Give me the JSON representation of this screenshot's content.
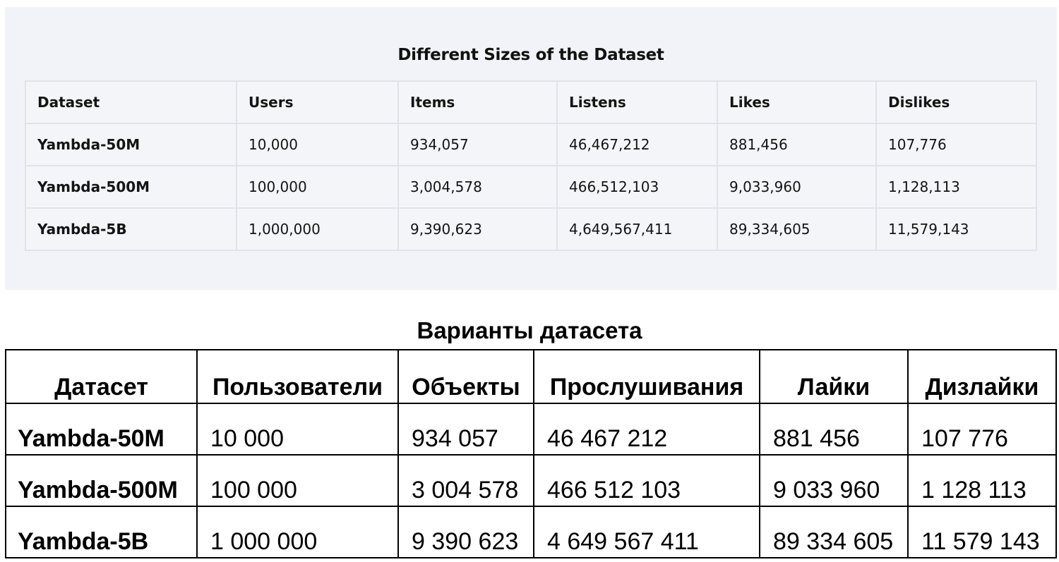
{
  "english": {
    "title": "Different Sizes of the Dataset",
    "columns": [
      "Dataset",
      "Users",
      "Items",
      "Listens",
      "Likes",
      "Dislikes"
    ],
    "rows": [
      [
        "Yambda-50M",
        "10,000",
        "934,057",
        "46,467,212",
        "881,456",
        "107,776"
      ],
      [
        "Yambda-500M",
        "100,000",
        "3,004,578",
        "466,512,103",
        "9,033,960",
        "1,128,113"
      ],
      [
        "Yambda-5B",
        "1,000,000",
        "9,390,623",
        "4,649,567,411",
        "89,334,605",
        "11,579,143"
      ]
    ]
  },
  "russian": {
    "title": "Варианты датасета",
    "columns": [
      "Датасет",
      "Пользователи",
      "Объекты",
      "Прослушивания",
      "Лайки",
      "Дизлайки"
    ],
    "rows": [
      [
        "Yambda-50M",
        "10 000",
        "934 057",
        "46 467 212",
        "881 456",
        "107 776"
      ],
      [
        "Yambda-500M",
        "100 000",
        "3 004 578",
        "466 512 103",
        "9 033 960",
        "1 128 113"
      ],
      [
        "Yambda-5B",
        "1 000 000",
        "9 390 623",
        "4 649 567 411",
        "89 334 605",
        "11 579 143"
      ]
    ]
  }
}
